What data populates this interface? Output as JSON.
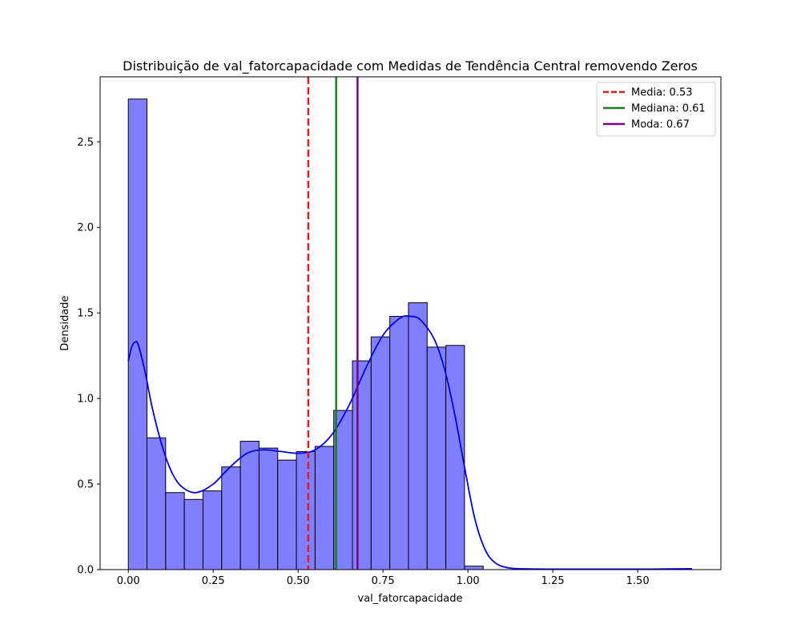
{
  "chart_data": {
    "type": "histogram",
    "title": "Distribuição de val_fatorcapacidade com Medidas de Tendência Central removendo Zeros",
    "xlabel": "val_fatorcapacidade",
    "ylabel": "Densidade",
    "xlim": [
      -0.083,
      1.745
    ],
    "ylim": [
      0,
      2.88
    ],
    "x_ticks": [
      "0.00",
      "0.25",
      "0.50",
      "0.75",
      "1.00",
      "1.25",
      "1.50"
    ],
    "x_tick_values": [
      0,
      0.25,
      0.5,
      0.75,
      1.0,
      1.25,
      1.5
    ],
    "y_ticks": [
      "0.0",
      "0.5",
      "1.0",
      "1.5",
      "2.0",
      "2.5"
    ],
    "y_tick_values": [
      0,
      0.5,
      1.0,
      1.5,
      2.0,
      2.5
    ],
    "bin_width": 0.055,
    "bins": [
      {
        "x0": 0.0,
        "density": 2.75
      },
      {
        "x0": 0.055,
        "density": 0.77
      },
      {
        "x0": 0.11,
        "density": 0.45
      },
      {
        "x0": 0.165,
        "density": 0.41
      },
      {
        "x0": 0.22,
        "density": 0.46
      },
      {
        "x0": 0.275,
        "density": 0.6
      },
      {
        "x0": 0.33,
        "density": 0.75
      },
      {
        "x0": 0.385,
        "density": 0.71
      },
      {
        "x0": 0.44,
        "density": 0.64
      },
      {
        "x0": 0.495,
        "density": 0.69
      },
      {
        "x0": 0.55,
        "density": 0.72
      },
      {
        "x0": 0.605,
        "density": 0.93
      },
      {
        "x0": 0.66,
        "density": 1.22
      },
      {
        "x0": 0.715,
        "density": 1.36
      },
      {
        "x0": 0.77,
        "density": 1.48
      },
      {
        "x0": 0.825,
        "density": 1.56
      },
      {
        "x0": 0.88,
        "density": 1.3
      },
      {
        "x0": 0.935,
        "density": 1.31
      },
      {
        "x0": 0.99,
        "density": 0.02
      }
    ],
    "kde": {
      "x": [
        0.0,
        0.01,
        0.02,
        0.03,
        0.05,
        0.07,
        0.1,
        0.13,
        0.16,
        0.2,
        0.25,
        0.3,
        0.35,
        0.4,
        0.45,
        0.5,
        0.55,
        0.6,
        0.65,
        0.7,
        0.75,
        0.8,
        0.83,
        0.86,
        0.9,
        0.93,
        0.96,
        0.99,
        1.02,
        1.05,
        1.08,
        1.12,
        1.18,
        1.25,
        1.4,
        1.55,
        1.66
      ],
      "y": [
        1.22,
        1.3,
        1.33,
        1.31,
        1.15,
        0.95,
        0.72,
        0.56,
        0.48,
        0.45,
        0.5,
        0.6,
        0.68,
        0.7,
        0.69,
        0.68,
        0.7,
        0.79,
        0.96,
        1.18,
        1.37,
        1.47,
        1.48,
        1.46,
        1.35,
        1.18,
        0.92,
        0.6,
        0.3,
        0.12,
        0.04,
        0.01,
        0.004,
        0.003,
        0.003,
        0.003,
        0.005
      ]
    },
    "series": [
      {
        "name": "Media: 0.53",
        "value": 0.53,
        "color": "#e41a1c",
        "style": "dashed"
      },
      {
        "name": "Mediana: 0.61",
        "value": 0.612,
        "color": "#1a7f1a",
        "style": "solid"
      },
      {
        "name": "Moda: 0.67",
        "value": 0.675,
        "color": "#800080",
        "style": "solid"
      }
    ],
    "bar_color": "#8080ff",
    "kde_color": "#0000ee",
    "legend_position": "top-right",
    "grid": false
  }
}
